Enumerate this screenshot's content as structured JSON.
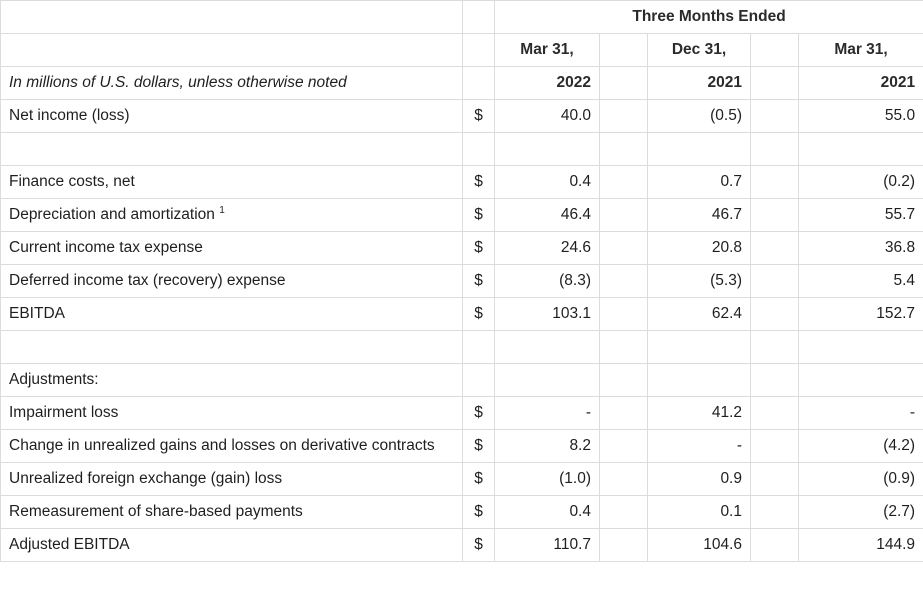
{
  "header": {
    "period_group": "Three Months Ended",
    "columns": [
      {
        "month": "Mar 31,",
        "year": "2022"
      },
      {
        "month": "Dec 31,",
        "year": "2021"
      },
      {
        "month": "Mar 31,",
        "year": "2021"
      }
    ],
    "units_note": "In millions of U.S. dollars, unless otherwise noted"
  },
  "rows": {
    "net_income": {
      "label": "Net income (loss)",
      "dollar": "$",
      "values": [
        "40.0",
        "(0.5)",
        "55.0"
      ]
    },
    "finance_costs": {
      "label": "Finance costs, net",
      "dollar": "$",
      "values": [
        "0.4",
        "0.7",
        "(0.2)"
      ]
    },
    "depreciation": {
      "label": "Depreciation and amortization",
      "footnote": "1",
      "dollar": "$",
      "values": [
        "46.4",
        "46.7",
        "55.7"
      ]
    },
    "current_tax": {
      "label": "Current income tax expense",
      "dollar": "$",
      "values": [
        "24.6",
        "20.8",
        "36.8"
      ]
    },
    "deferred_tax": {
      "label": "Deferred income tax (recovery) expense",
      "dollar": "$",
      "values": [
        "(8.3)",
        "(5.3)",
        "5.4"
      ]
    },
    "ebitda": {
      "label": "EBITDA",
      "dollar": "$",
      "values": [
        "103.1",
        "62.4",
        "152.7"
      ]
    },
    "adjustments": {
      "label": "Adjustments:"
    },
    "impairment": {
      "label": "Impairment loss",
      "dollar": "$",
      "values": [
        "-",
        "41.2",
        "-"
      ]
    },
    "derivatives": {
      "label": "Change in unrealized gains and losses on derivative contracts",
      "dollar": "$",
      "values": [
        "8.2",
        "-",
        "(4.2)"
      ]
    },
    "fx": {
      "label": "Unrealized foreign exchange (gain) loss",
      "dollar": "$",
      "values": [
        "(1.0)",
        "0.9",
        "(0.9)"
      ]
    },
    "share_based": {
      "label": "Remeasurement of share-based payments",
      "dollar": "$",
      "values": [
        "0.4",
        "0.1",
        "(2.7)"
      ]
    },
    "adjusted_ebitda": {
      "label": "Adjusted EBITDA",
      "dollar": "$",
      "values": [
        "110.7",
        "104.6",
        "144.9"
      ]
    }
  }
}
